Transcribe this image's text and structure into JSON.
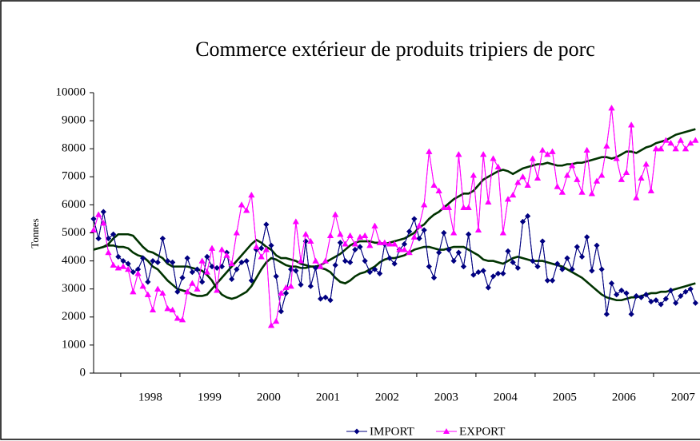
{
  "chart_data": {
    "type": "line",
    "title": "Commerce extérieur de produits tripiers de porc",
    "y_label": "Tonnes",
    "ylim": [
      0,
      10000
    ],
    "yticks": [
      0,
      1000,
      2000,
      3000,
      4000,
      5000,
      6000,
      7000,
      8000,
      9000,
      10000
    ],
    "grid": false,
    "legend": "bottom",
    "categories": [
      null,
      null,
      null,
      null,
      null,
      null,
      null,
      null,
      null,
      null,
      null,
      null,
      "1998",
      null,
      null,
      null,
      null,
      null,
      null,
      null,
      null,
      null,
      null,
      null,
      "1999",
      null,
      null,
      null,
      null,
      null,
      null,
      null,
      null,
      null,
      null,
      null,
      "2000",
      null,
      null,
      null,
      null,
      null,
      null,
      null,
      null,
      null,
      null,
      null,
      "2001",
      null,
      null,
      null,
      null,
      null,
      null,
      null,
      null,
      null,
      null,
      null,
      "2002",
      null,
      null,
      null,
      null,
      null,
      null,
      null,
      null,
      null,
      null,
      null,
      "2003",
      null,
      null,
      null,
      null,
      null,
      null,
      null,
      null,
      null,
      null,
      null,
      "2004",
      null,
      null,
      null,
      null,
      null,
      null,
      null,
      null,
      null,
      null,
      null,
      "2005",
      null,
      null,
      null,
      null,
      null,
      null,
      null,
      null,
      null,
      null,
      null,
      "2006",
      null,
      null,
      null,
      null,
      null,
      null,
      null,
      null,
      null,
      null,
      null,
      "2007",
      null,
      null
    ],
    "series": [
      {
        "name": "IMPORT",
        "color": "#000080",
        "marker": "diamond",
        "values": [
          5500,
          4800,
          5750,
          4800,
          4950,
          4150,
          4000,
          3900,
          3600,
          3700,
          4100,
          3250,
          4000,
          3950,
          4800,
          4000,
          3950,
          2900,
          3400,
          4100,
          3600,
          3700,
          3250,
          4150,
          3800,
          3750,
          3800,
          4300,
          3350,
          3700,
          3950,
          4000,
          3300,
          4400,
          4450,
          5300,
          4550,
          3450,
          2200,
          2850,
          3700,
          3650,
          3150,
          4700,
          3100,
          3750,
          2650,
          2700,
          2600,
          3850,
          4650,
          4000,
          3950,
          4400,
          4500,
          4000,
          3600,
          3700,
          3550,
          4600,
          4100,
          3900,
          4400,
          4600,
          5050,
          5500,
          4800,
          5100,
          3800,
          3400,
          4300,
          5000,
          4400,
          4000,
          4300,
          3800,
          4950,
          3500,
          3600,
          3650,
          3050,
          3450,
          3550,
          3550,
          4350,
          3950,
          3750,
          5400,
          5600,
          4000,
          3800,
          4700,
          3300,
          3300,
          3900,
          3700,
          4100,
          3700,
          4500,
          4150,
          4850,
          3650,
          4550,
          3700,
          2100,
          3200,
          2800,
          2950,
          2850,
          2100,
          2750,
          2700,
          2800,
          2550,
          2600,
          2450,
          2650,
          2950,
          2500,
          2750,
          2900,
          3000,
          2500
        ]
      },
      {
        "name": "EXPORT",
        "color": "#FF00FF",
        "marker": "triangle",
        "values": [
          5100,
          5650,
          5350,
          4300,
          3850,
          3750,
          3800,
          3700,
          2900,
          3550,
          3100,
          2800,
          2250,
          3000,
          2850,
          2300,
          2250,
          1950,
          1900,
          2900,
          3200,
          3000,
          4000,
          3600,
          4450,
          2950,
          4400,
          4200,
          3900,
          5000,
          6000,
          5800,
          6350,
          4500,
          4150,
          4400,
          1700,
          1850,
          2850,
          3050,
          3100,
          5400,
          4000,
          4950,
          4700,
          4000,
          3800,
          4000,
          4900,
          5650,
          4950,
          4600,
          4900,
          4600,
          4850,
          4900,
          4550,
          5250,
          4650,
          4650,
          4600,
          4600,
          4400,
          4400,
          4300,
          4850,
          5250,
          6000,
          7900,
          6700,
          6500,
          5900,
          5900,
          5000,
          7800,
          5900,
          5900,
          7050,
          5100,
          7800,
          6100,
          7650,
          7350,
          5000,
          6200,
          6350,
          6800,
          7000,
          6700,
          7650,
          6950,
          7950,
          7800,
          7900,
          6650,
          6450,
          7050,
          7400,
          6900,
          6450,
          7950,
          6400,
          6850,
          7050,
          8100,
          9450,
          7650,
          6900,
          7150,
          8850,
          6250,
          6950,
          7450,
          6500,
          8000,
          8000,
          8300,
          8200,
          8000,
          8300,
          8000,
          8200,
          8300
        ]
      },
      {
        "color": "#003300",
        "marker": "none",
        "values": [
          4400,
          4450,
          4500,
          4600,
          4800,
          4950,
          4950,
          4950,
          4900,
          4700,
          4500,
          4350,
          4300,
          4200,
          4100,
          3900,
          3800,
          3800,
          3800,
          3800,
          3750,
          3700,
          3650,
          3500,
          3300,
          3000,
          2800,
          2700,
          2650,
          2700,
          2800,
          2900,
          3100,
          3400,
          3700,
          3950,
          4100,
          4050,
          3950,
          3850,
          3800,
          3800,
          3750,
          3750,
          3800,
          3800,
          3750,
          3700,
          3600,
          3400,
          3250,
          3200,
          3300,
          3450,
          3550,
          3600,
          3700,
          3800,
          3950,
          4050,
          4100,
          4100,
          4150,
          4200,
          4300,
          4400,
          4450,
          4500,
          4500,
          4450,
          4400,
          4400,
          4450,
          4500,
          4500,
          4500,
          4400,
          4300,
          4200,
          4050,
          4000,
          4000,
          3950,
          3900,
          4000,
          4100,
          4150,
          4100,
          4050,
          4000,
          4000,
          4000,
          3950,
          3900,
          3850,
          3800,
          3700,
          3600,
          3500,
          3400,
          3250,
          3100,
          2950,
          2800,
          2700,
          2650,
          2600,
          2600,
          2650,
          2700,
          2700,
          2750,
          2800,
          2850,
          2850,
          2900,
          2900,
          2950,
          3000,
          3050,
          3100,
          3150,
          3200
        ]
      },
      {
        "color": "#003300",
        "marker": "none",
        "values": [
          4400,
          4450,
          4500,
          4550,
          4550,
          4500,
          4500,
          4450,
          4300,
          4200,
          4150,
          4000,
          3800,
          3700,
          3500,
          3300,
          3150,
          3000,
          2950,
          2900,
          2800,
          2750,
          2750,
          2800,
          3000,
          3200,
          3400,
          3600,
          3800,
          4000,
          4200,
          4400,
          4600,
          4750,
          4650,
          4500,
          4400,
          4200,
          4100,
          4100,
          4050,
          4000,
          3900,
          3850,
          3800,
          3800,
          3850,
          3950,
          4050,
          4150,
          4250,
          4400,
          4550,
          4650,
          4700,
          4700,
          4700,
          4650,
          4650,
          4600,
          4650,
          4700,
          4750,
          4800,
          4900,
          5000,
          5200,
          5300,
          5500,
          5650,
          5750,
          5900,
          6050,
          6200,
          6300,
          6400,
          6400,
          6500,
          6700,
          6900,
          7000,
          7100,
          7200,
          7250,
          7200,
          7100,
          7200,
          7300,
          7350,
          7400,
          7450,
          7450,
          7500,
          7450,
          7400,
          7400,
          7450,
          7450,
          7500,
          7500,
          7550,
          7600,
          7650,
          7700,
          7700,
          7650,
          7700,
          7800,
          7900,
          7900,
          7850,
          7950,
          8050,
          8100,
          8200,
          8250,
          8300,
          8400,
          8500,
          8550,
          8600,
          8650,
          8700
        ]
      }
    ]
  }
}
